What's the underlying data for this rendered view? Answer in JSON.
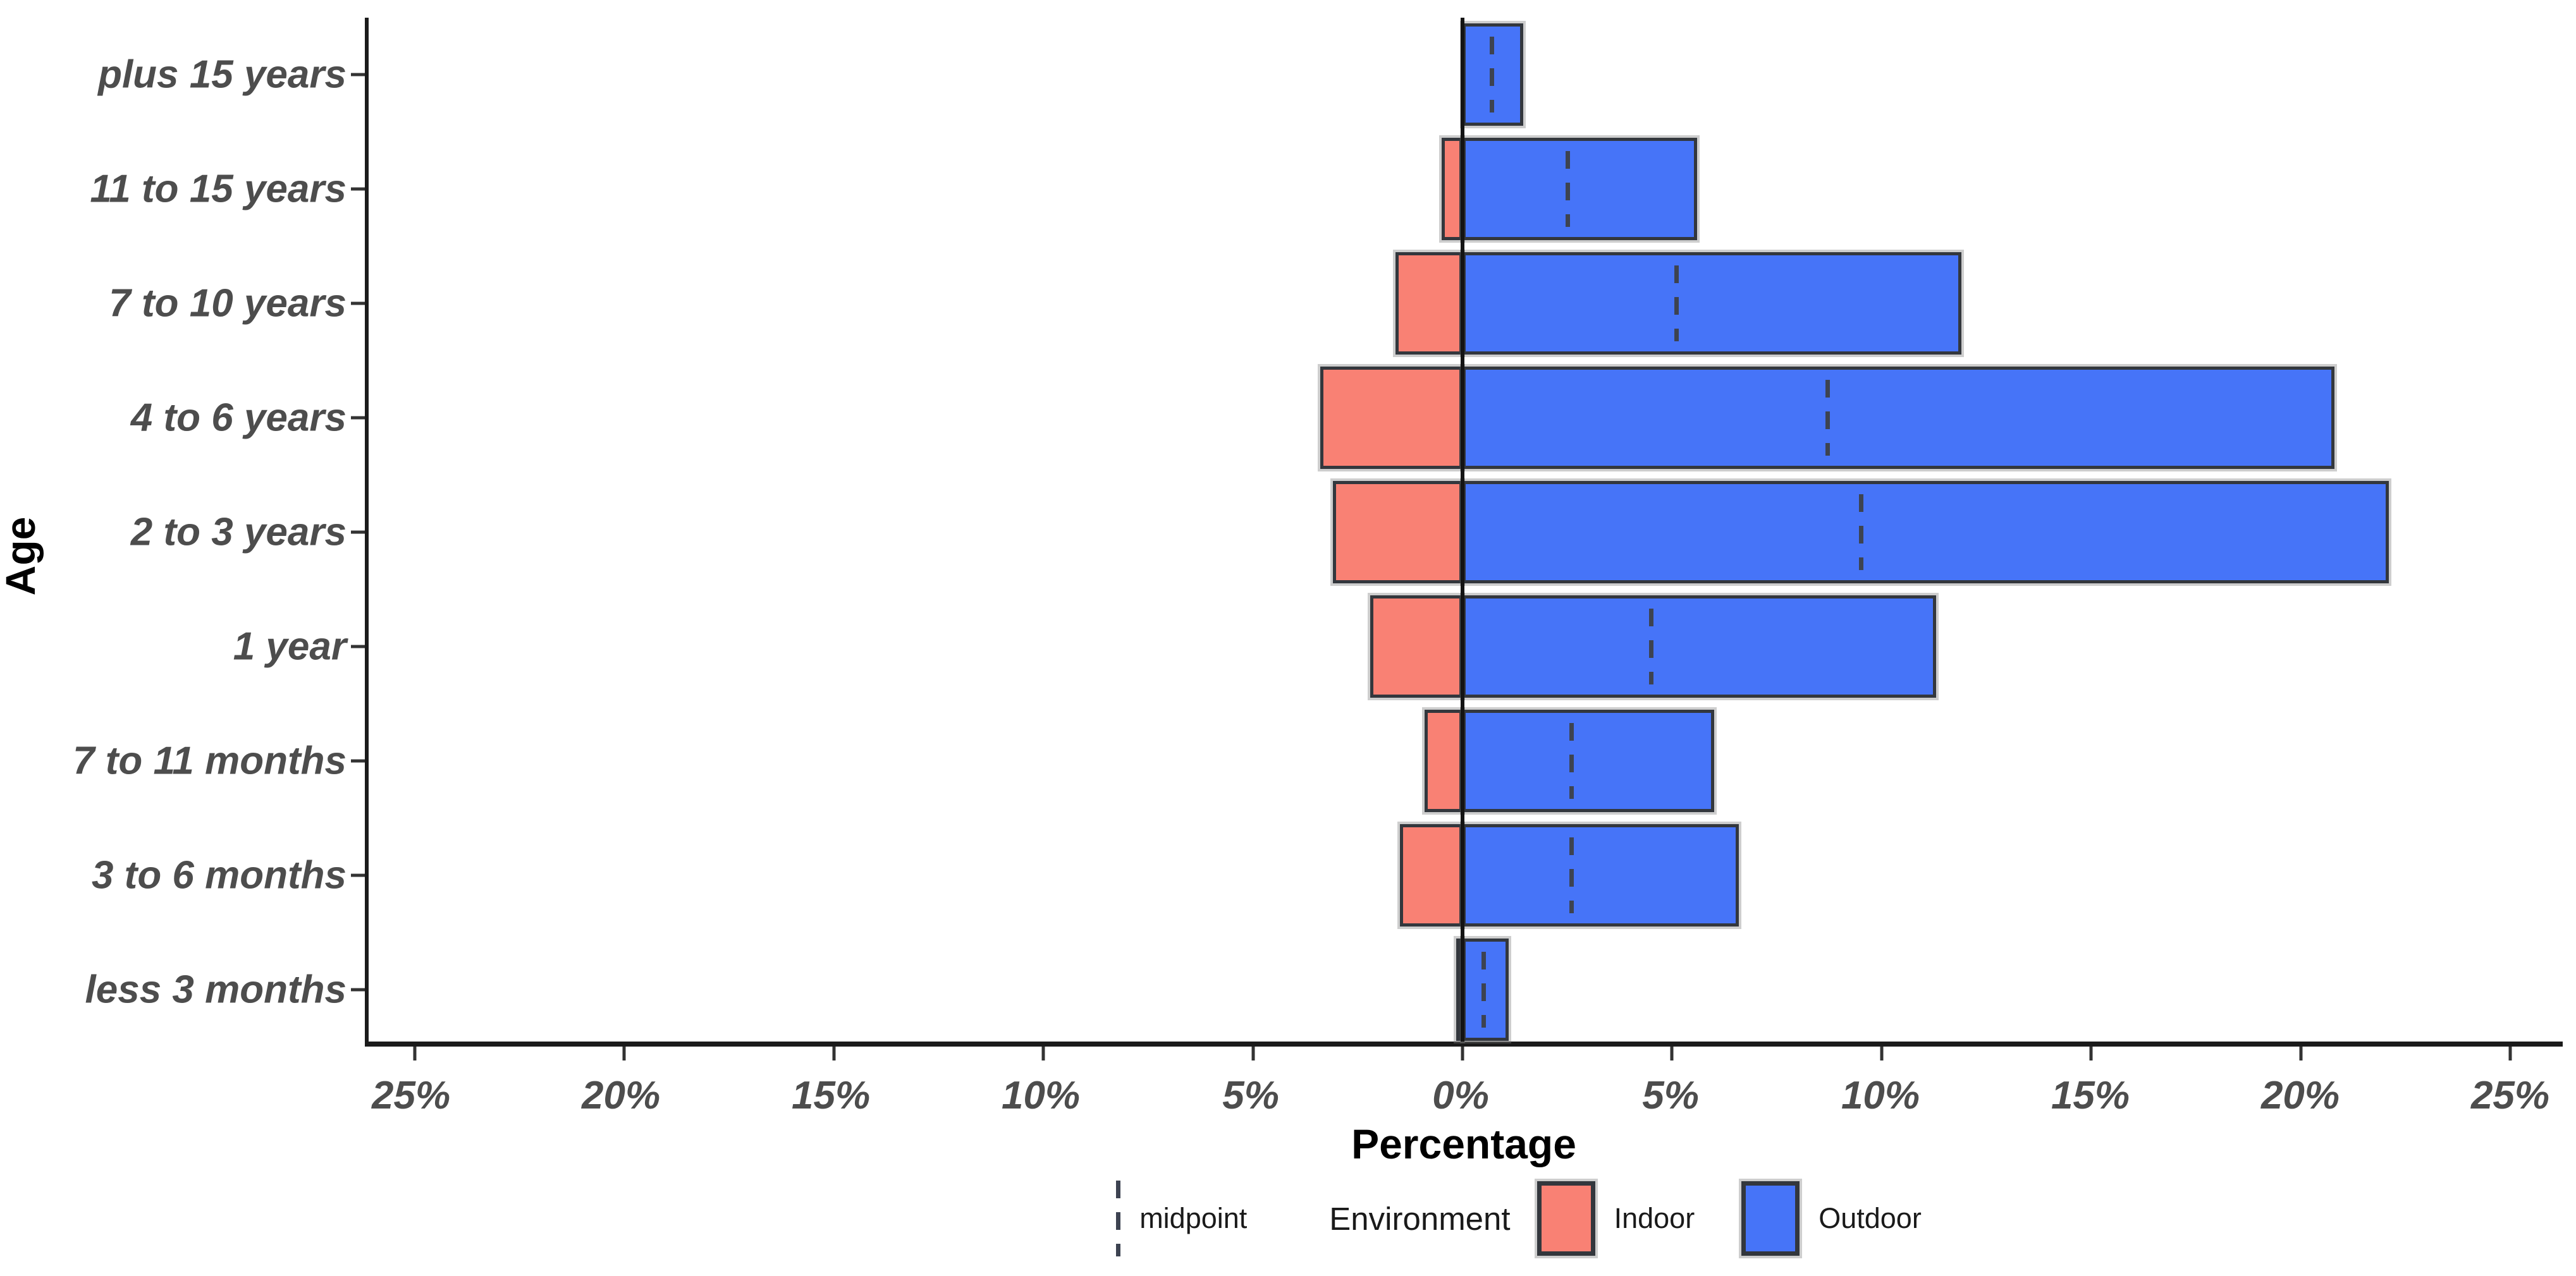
{
  "chart_data": {
    "type": "bar",
    "orientation": "horizontal-diverging",
    "title": "",
    "xlabel": "Percentage",
    "ylabel": "Age",
    "categories": [
      "plus 15 years",
      "11 to 15 years",
      "7 to 10 years",
      "4 to 6 years",
      "2 to 3 years",
      "1 year",
      "7 to 11 months",
      "3 to 6 months",
      "less 3 months"
    ],
    "series": [
      {
        "name": "Indoor",
        "side": "left",
        "color": "#F98174",
        "values": [
          0.05,
          0.5,
          1.6,
          3.4,
          3.1,
          2.2,
          0.9,
          1.5,
          0.15
        ]
      },
      {
        "name": "Outdoor",
        "side": "right",
        "color": "#4674F8",
        "values": [
          1.45,
          5.6,
          11.9,
          20.8,
          22.1,
          11.3,
          6.0,
          6.6,
          1.1
        ]
      }
    ],
    "midpoints": {
      "name": "midpoint",
      "color": "#3d4351",
      "values": [
        0.7,
        2.5,
        5.1,
        8.7,
        9.5,
        4.5,
        2.6,
        2.6,
        0.5
      ]
    },
    "x_ticks": [
      -25,
      -20,
      -15,
      -10,
      -5,
      0,
      5,
      10,
      15,
      20,
      25
    ],
    "x_tick_suffix": "%",
    "xlim": [
      -26.1,
      26.25
    ],
    "grid": "off",
    "legend": {
      "position": "bottom",
      "midpoint_label": "midpoint",
      "title": "Environment",
      "items": [
        "Indoor",
        "Outdoor"
      ]
    },
    "colors": {
      "axis_line": "#1b1b1b",
      "bar_border": "#33373d",
      "tick_text": "#4d4d4d",
      "background": "#ffffff"
    }
  }
}
